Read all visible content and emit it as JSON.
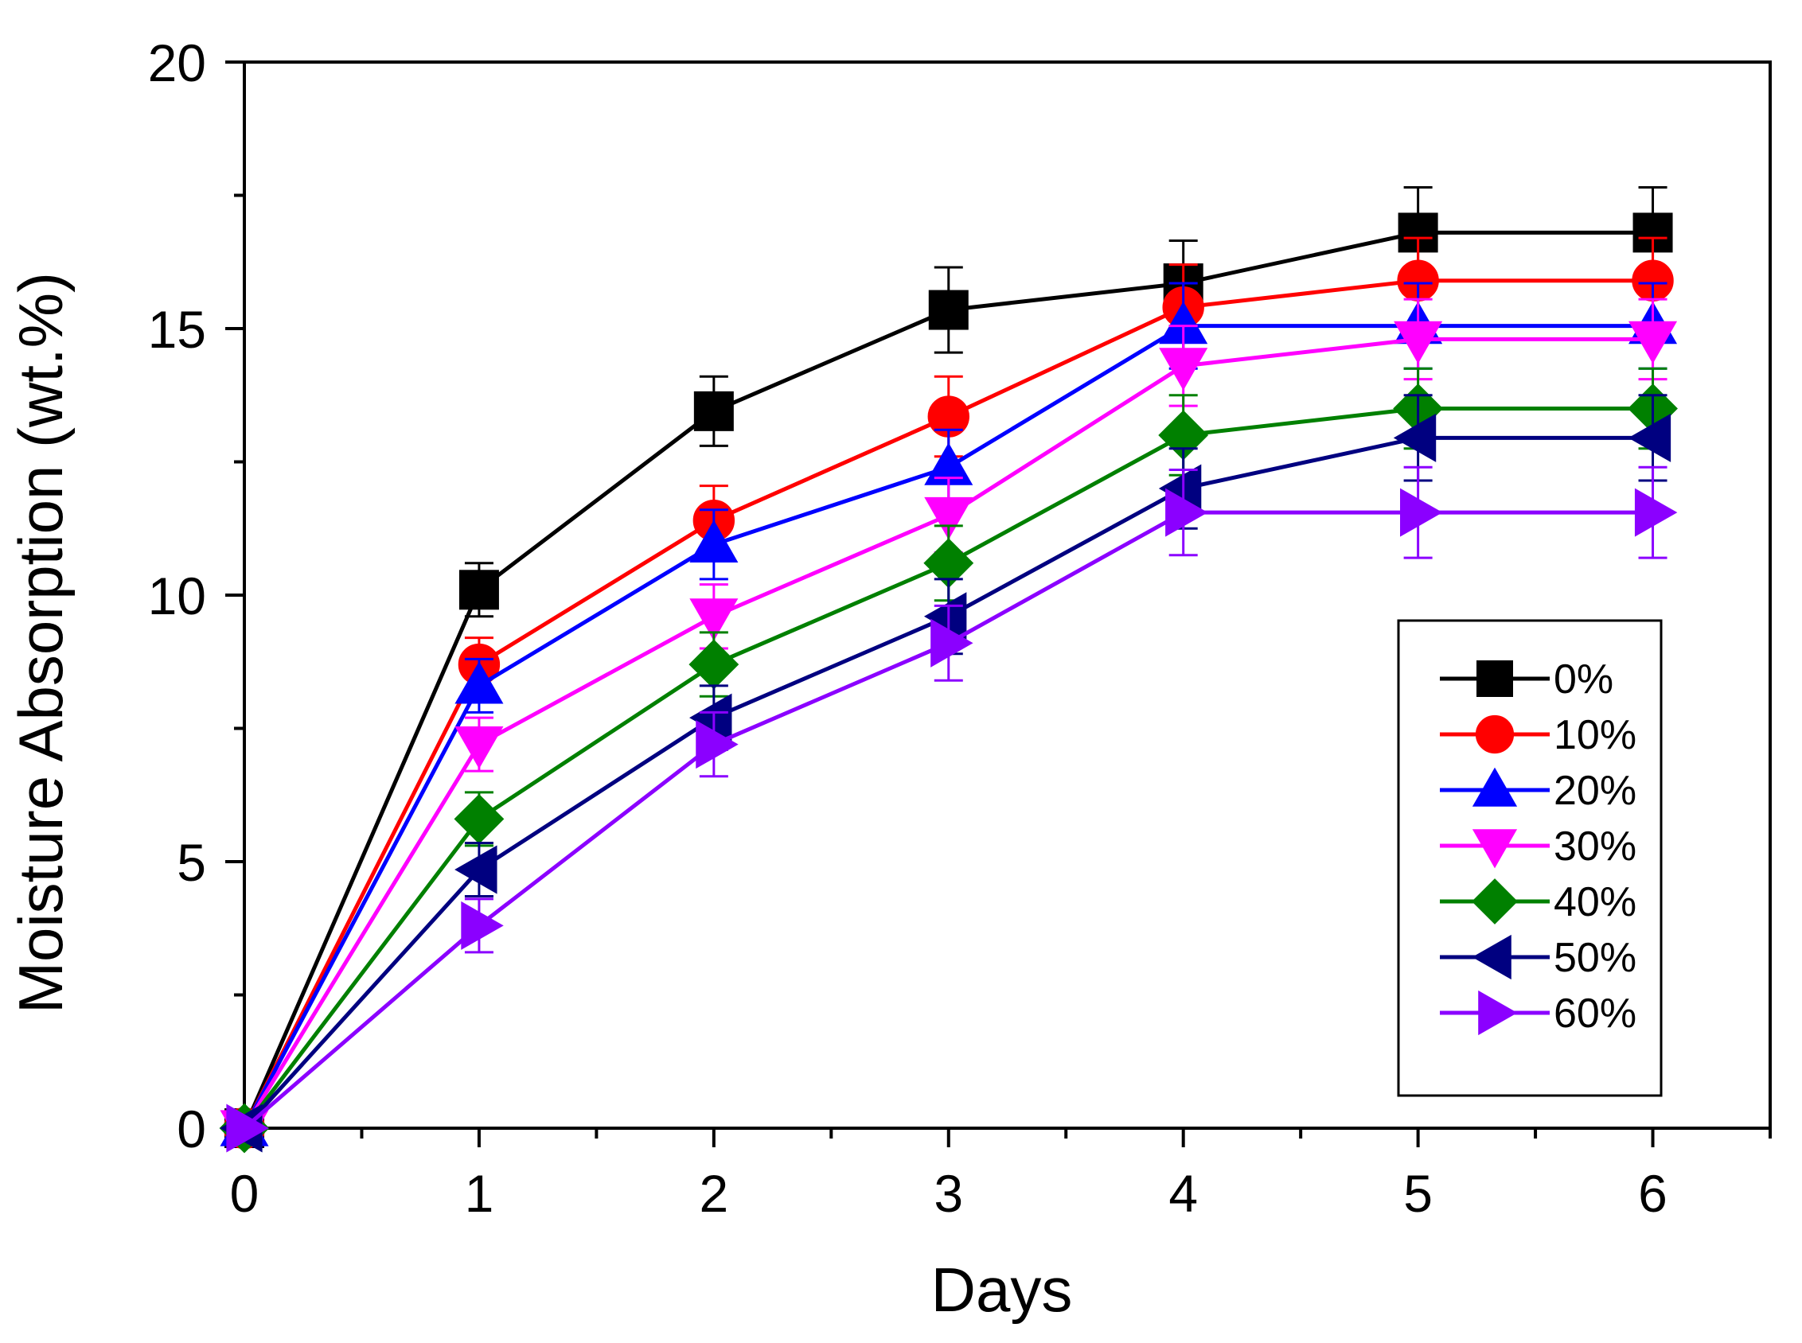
{
  "chart_data": {
    "type": "line",
    "title": "",
    "xlabel": "Days",
    "ylabel": "Moisture Absorption (wt.%)",
    "xlim": [
      0,
      6.5
    ],
    "ylim": [
      0,
      20
    ],
    "x": [
      0,
      1,
      2,
      3,
      4,
      5,
      6
    ],
    "xticks": [
      "0",
      "1",
      "2",
      "3",
      "4",
      "5",
      "6"
    ],
    "yticks": [
      "0",
      "5",
      "10",
      "15",
      "20"
    ],
    "grid": false,
    "legend_position": "center-right",
    "series": [
      {
        "name": "0%",
        "marker": "square",
        "color": "#000000",
        "values": [
          0,
          10.1,
          13.45,
          15.35,
          15.85,
          16.8,
          16.8
        ],
        "errors": [
          0,
          0.5,
          0.65,
          0.8,
          0.8,
          0.85,
          0.85
        ]
      },
      {
        "name": "10%",
        "marker": "circle",
        "color": "#ff0000",
        "values": [
          0,
          8.7,
          11.4,
          13.35,
          15.4,
          15.9,
          15.9
        ],
        "errors": [
          0,
          0.5,
          0.65,
          0.75,
          0.8,
          0.8,
          0.8
        ]
      },
      {
        "name": "20%",
        "marker": "triangle-up",
        "color": "#0000ff",
        "values": [
          0,
          8.3,
          10.95,
          12.4,
          15.05,
          15.05,
          15.05
        ],
        "errors": [
          0,
          0.5,
          0.65,
          0.7,
          0.8,
          0.8,
          0.8
        ]
      },
      {
        "name": "30%",
        "marker": "triangle-down",
        "color": "#ff00ff",
        "values": [
          0,
          7.2,
          9.6,
          11.5,
          14.3,
          14.8,
          14.8
        ],
        "errors": [
          0,
          0.5,
          0.6,
          0.7,
          0.75,
          0.75,
          0.75
        ]
      },
      {
        "name": "40%",
        "marker": "diamond",
        "color": "#008000",
        "values": [
          0,
          5.8,
          8.7,
          10.6,
          13.0,
          13.5,
          13.5
        ],
        "errors": [
          0,
          0.5,
          0.6,
          0.7,
          0.75,
          0.75,
          0.75
        ]
      },
      {
        "name": "50%",
        "marker": "triangle-left",
        "color": "#000080",
        "values": [
          0,
          4.85,
          7.7,
          9.6,
          12.0,
          12.95,
          12.95
        ],
        "errors": [
          0,
          0.5,
          0.6,
          0.7,
          0.75,
          0.8,
          0.8
        ]
      },
      {
        "name": "60%",
        "marker": "triangle-right",
        "color": "#8b00ff",
        "values": [
          0,
          3.8,
          7.2,
          9.1,
          11.55,
          11.55,
          11.55
        ],
        "errors": [
          0,
          0.5,
          0.6,
          0.7,
          0.8,
          0.85,
          0.85
        ]
      }
    ]
  }
}
